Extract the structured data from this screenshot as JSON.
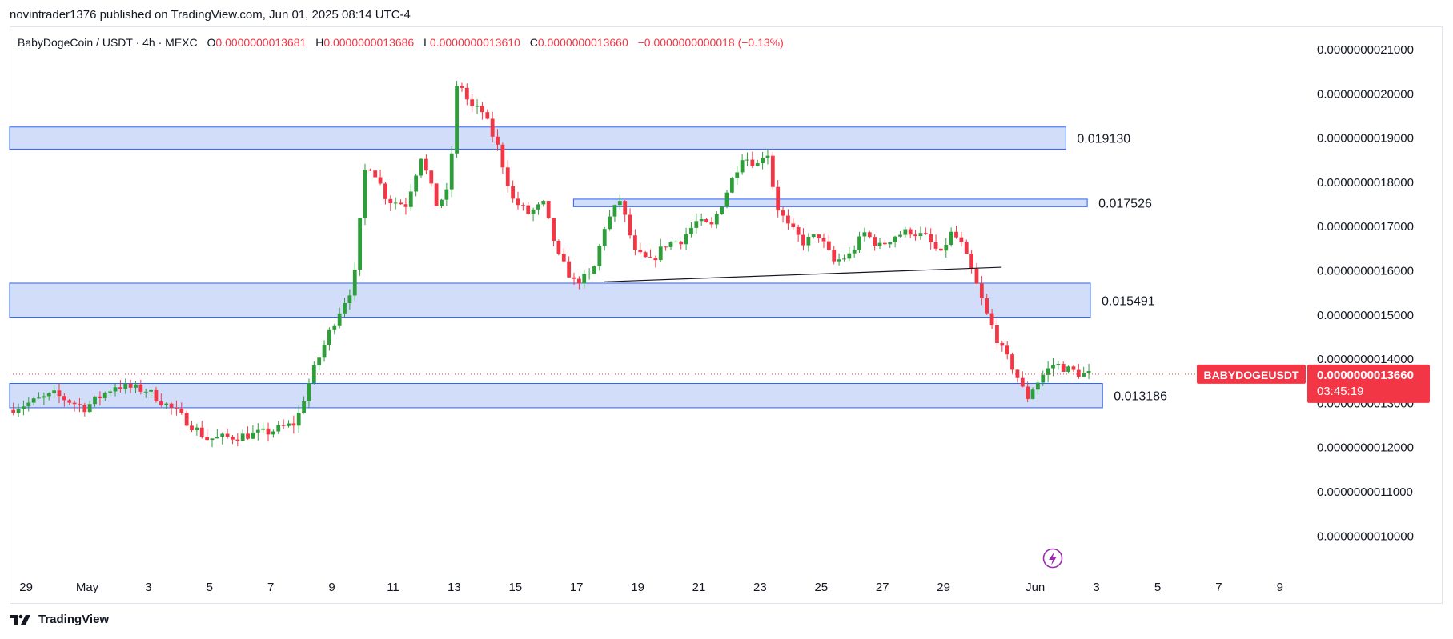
{
  "publish_line": "novintrader1376 published on TradingView.com, Jun 01, 2025 08:14 UTC-4",
  "legend": {
    "symbol": "BabyDogeCoin / USDT · 4h · MEXC",
    "o_label": "O",
    "o_value": "0.0000000013681",
    "h_label": "H",
    "h_value": "0.0000000013686",
    "l_label": "L",
    "l_value": "0.0000000013610",
    "c_label": "C",
    "c_value": "0.0000000013660",
    "change": "−0.0000000000018 (−0.13%)"
  },
  "footer": {
    "brand": "TradingView"
  },
  "colors": {
    "up": "#089981",
    "up_body": "#2e9e3a",
    "down": "#f23645",
    "zone_fill": "#d2ddfa",
    "zone_stroke": "#2962ff",
    "price_tag": "#f23645",
    "trendline": "#131722"
  },
  "chart_data": {
    "type": "candlestick",
    "interval": "4h",
    "y_scale": "linear",
    "ylim": [
      9.5e-10,
      2.15e-09
    ],
    "y_ticks": [
      "0.0000000021000",
      "0.0000000020000",
      "0.0000000019000",
      "0.0000000018000",
      "0.0000000017000",
      "0.0000000016000",
      "0.0000000015000",
      "0.0000000014000",
      "0.0000000013000",
      "0.0000000012000",
      "0.0000000011000",
      "0.0000000010000"
    ],
    "y_tick_values": [
      2.1,
      2.0,
      1.9,
      1.8,
      1.7,
      1.6,
      1.5,
      1.4,
      1.3,
      1.2,
      1.1,
      1.0
    ],
    "x_ticks": [
      "29",
      "May",
      "3",
      "5",
      "7",
      "9",
      "11",
      "13",
      "15",
      "17",
      "19",
      "21",
      "23",
      "25",
      "27",
      "29",
      "Jun",
      "3",
      "5",
      "7",
      "9"
    ],
    "x_tick_days": [
      -2,
      0,
      2,
      4,
      6,
      8,
      10,
      12,
      14,
      16,
      18,
      20,
      22,
      24,
      26,
      28,
      31,
      33,
      35,
      37,
      39
    ],
    "x_range_days": [
      -2.5,
      40
    ],
    "path_points": [
      [
        -2.5,
        1.285
      ],
      [
        -1,
        1.32
      ],
      [
        0,
        1.29
      ],
      [
        1,
        1.34
      ],
      [
        2,
        1.33
      ],
      [
        3,
        1.28
      ],
      [
        4,
        1.22
      ],
      [
        5,
        1.225
      ],
      [
        6,
        1.235
      ],
      [
        6.9,
        1.255
      ],
      [
        7.4,
        1.36
      ],
      [
        8,
        1.46
      ],
      [
        8.4,
        1.52
      ],
      [
        8.8,
        1.57
      ],
      [
        9.2,
        1.85
      ],
      [
        9.5,
        1.82
      ],
      [
        9.9,
        1.76
      ],
      [
        10.5,
        1.75
      ],
      [
        11,
        1.86
      ],
      [
        11.5,
        1.75
      ],
      [
        11.9,
        1.78
      ],
      [
        12.2,
        2.04
      ],
      [
        12.6,
        1.97
      ],
      [
        13,
        1.96
      ],
      [
        13.5,
        1.88
      ],
      [
        14,
        1.76
      ],
      [
        14.5,
        1.73
      ],
      [
        15,
        1.75
      ],
      [
        15.5,
        1.63
      ],
      [
        16,
        1.575
      ],
      [
        16.6,
        1.59
      ],
      [
        17,
        1.7
      ],
      [
        17.5,
        1.76
      ],
      [
        18,
        1.64
      ],
      [
        18.5,
        1.62
      ],
      [
        19,
        1.66
      ],
      [
        19.5,
        1.67
      ],
      [
        20,
        1.71
      ],
      [
        20.5,
        1.7
      ],
      [
        21,
        1.78
      ],
      [
        21.5,
        1.86
      ],
      [
        22,
        1.84
      ],
      [
        22.3,
        1.88
      ],
      [
        22.6,
        1.75
      ],
      [
        23,
        1.7
      ],
      [
        23.5,
        1.665
      ],
      [
        24,
        1.68
      ],
      [
        24.5,
        1.62
      ],
      [
        25,
        1.635
      ],
      [
        25.5,
        1.685
      ],
      [
        26,
        1.655
      ],
      [
        26.5,
        1.68
      ],
      [
        27,
        1.69
      ],
      [
        27.5,
        1.675
      ],
      [
        28,
        1.635
      ],
      [
        28.3,
        1.685
      ],
      [
        28.6,
        1.67
      ],
      [
        29,
        1.6
      ],
      [
        29.5,
        1.5
      ],
      [
        30,
        1.42
      ],
      [
        30.4,
        1.375
      ],
      [
        30.8,
        1.31
      ],
      [
        31,
        1.335
      ],
      [
        31.4,
        1.37
      ],
      [
        31.7,
        1.39
      ],
      [
        32.2,
        1.375
      ],
      [
        32.6,
        1.366
      ]
    ],
    "candle_window_days": [
      -2.5,
      32.7
    ],
    "zones": [
      {
        "label": "0.019130",
        "low": 1.875,
        "high": 1.925,
        "end_day": 32.0
      },
      {
        "label": "0.017526",
        "low": 1.745,
        "high": 1.762,
        "start_day": 15.9,
        "end_day": 32.7
      },
      {
        "label": "0.015491",
        "low": 1.495,
        "high": 1.572,
        "end_day": 32.8
      },
      {
        "label": "0.013186",
        "low": 1.29,
        "high": 1.345,
        "end_day": 33.2
      }
    ],
    "trendline": [
      [
        16.9,
        1.575
      ],
      [
        29.9,
        1.608
      ]
    ],
    "last_price_line": 1.366,
    "price_tag": {
      "symbol": "BABYDOGEUSDT",
      "price": "0.0000000013660",
      "countdown": "03:45:19"
    }
  }
}
